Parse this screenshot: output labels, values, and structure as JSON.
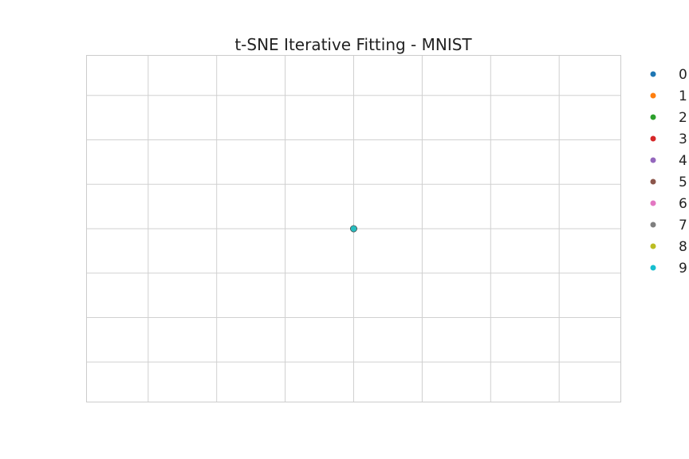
{
  "chart_data": {
    "type": "scatter",
    "title": "t-SNE Iterative Fitting - MNIST",
    "xlabel": "",
    "ylabel": "",
    "xlim": [
      -3.9,
      3.9
    ],
    "ylim": [
      -3.9,
      3.9
    ],
    "x_grid": [
      -3.0,
      -2.0,
      -1.0,
      0.0,
      1.0,
      2.0,
      3.0
    ],
    "y_grid": [
      -3.0,
      -2.0,
      -1.0,
      0.0,
      1.0,
      2.0,
      3.0
    ],
    "grid": true,
    "legend_position": "right",
    "series": [
      {
        "name": "0",
        "color": "#1f77b4",
        "x": [
          0
        ],
        "y": [
          0
        ]
      },
      {
        "name": "1",
        "color": "#ff7f0e",
        "x": [
          0
        ],
        "y": [
          0
        ]
      },
      {
        "name": "2",
        "color": "#2ca02c",
        "x": [
          0
        ],
        "y": [
          0
        ]
      },
      {
        "name": "3",
        "color": "#d62728",
        "x": [
          0
        ],
        "y": [
          0
        ]
      },
      {
        "name": "4",
        "color": "#9467bd",
        "x": [
          0
        ],
        "y": [
          0
        ]
      },
      {
        "name": "5",
        "color": "#8c564b",
        "x": [
          0
        ],
        "y": [
          0
        ]
      },
      {
        "name": "6",
        "color": "#e377c2",
        "x": [
          0
        ],
        "y": [
          0
        ]
      },
      {
        "name": "7",
        "color": "#7f7f7f",
        "x": [
          0
        ],
        "y": [
          0
        ]
      },
      {
        "name": "8",
        "color": "#bcbd22",
        "x": [
          0
        ],
        "y": [
          0
        ]
      },
      {
        "name": "9",
        "color": "#17becf",
        "x": [
          0
        ],
        "y": [
          0
        ]
      }
    ]
  }
}
